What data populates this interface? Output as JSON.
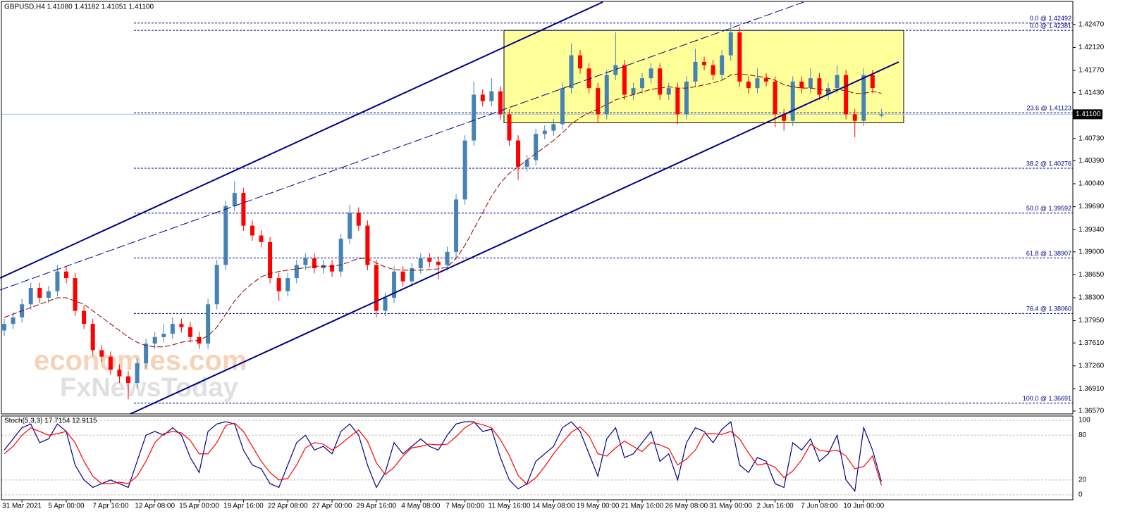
{
  "chart_data": [
    {
      "type": "candlestick",
      "title": "GBPUSD,H4  1.41080 1.41182 1.41051 1.41100",
      "categories": [
        null,
        null,
        "31 Mar 2021",
        null,
        null,
        null,
        null,
        "5 Apr 00:00",
        null,
        null,
        null,
        null,
        "7 Apr 16:00",
        null,
        null,
        null,
        null,
        "12 Apr 08:00",
        null,
        null,
        null,
        null,
        "15 Apr 00:00",
        null,
        null,
        null,
        null,
        "19 Apr 16:00",
        null,
        null,
        null,
        null,
        "22 Apr 08:00",
        null,
        null,
        null,
        null,
        "27 Apr 00:00",
        null,
        null,
        null,
        null,
        "29 Apr 16:00",
        null,
        null,
        null,
        null,
        "4 May 08:00",
        null,
        null,
        null,
        null,
        "7 May 00:00",
        null,
        null,
        null,
        null,
        "11 May 16:00",
        null,
        null,
        null,
        null,
        "14 May 08:00",
        null,
        null,
        null,
        null,
        "19 May 00:00",
        null,
        null,
        null,
        null,
        "21 May 16:00",
        null,
        null,
        null,
        null,
        "26 May 08:00",
        null,
        null,
        null,
        null,
        "31 May 00:00",
        null,
        null,
        null,
        null,
        "2 Jun 16:00",
        null,
        null,
        null,
        null,
        "7 Jun 08:00",
        null,
        null,
        null,
        null,
        "10 Jun 00:00",
        null,
        null
      ],
      "open": [
        1.378,
        1.379,
        1.38,
        1.382,
        1.3845,
        1.383,
        1.384,
        1.387,
        1.386,
        1.381,
        1.379,
        1.375,
        1.374,
        1.372,
        1.371,
        1.37,
        1.373,
        1.376,
        1.377,
        1.3775,
        1.379,
        1.3785,
        1.377,
        1.376,
        1.382,
        1.388,
        1.397,
        1.399,
        1.394,
        1.3925,
        1.3915,
        1.386,
        1.384,
        1.386,
        1.388,
        1.389,
        1.3875,
        1.388,
        1.387,
        1.392,
        1.396,
        1.394,
        1.388,
        1.381,
        1.383,
        1.387,
        1.3855,
        1.3875,
        1.389,
        1.3885,
        1.388,
        1.39,
        1.398,
        1.407,
        1.414,
        1.413,
        1.4145,
        1.411,
        1.407,
        1.403,
        1.404,
        1.408,
        1.4085,
        1.4095,
        1.415,
        1.42,
        1.418,
        1.415,
        1.411,
        1.417,
        1.4185,
        1.414,
        1.415,
        1.4165,
        1.418,
        1.414,
        1.415,
        1.411,
        1.416,
        1.419,
        1.4185,
        1.417,
        1.42,
        1.4235,
        1.416,
        1.415,
        1.4165,
        1.416,
        1.411,
        1.41,
        1.416,
        1.415,
        1.4165,
        1.414,
        1.415,
        1.417,
        1.411,
        1.41,
        1.417,
        1.4108
      ],
      "high": [
        1.3798,
        1.3808,
        1.3828,
        1.3853,
        1.3853,
        1.3848,
        1.388,
        1.3878,
        1.3868,
        1.3818,
        1.3798,
        1.3758,
        1.3748,
        1.3728,
        1.3718,
        1.3738,
        1.3768,
        1.3778,
        1.379,
        1.38,
        1.3798,
        1.3793,
        1.3778,
        1.3828,
        1.3888,
        1.3978,
        1.4008,
        1.3998,
        1.3948,
        1.3933,
        1.3923,
        1.3868,
        1.3868,
        1.3888,
        1.3898,
        1.3898,
        1.3888,
        1.3888,
        1.3928,
        1.3972,
        1.3968,
        1.3948,
        1.3888,
        1.3838,
        1.3878,
        1.3878,
        1.3883,
        1.3898,
        1.3898,
        1.3893,
        1.3908,
        1.3988,
        1.4078,
        1.416,
        1.4148,
        1.4165,
        1.4153,
        1.4118,
        1.4078,
        1.4048,
        1.4088,
        1.4093,
        1.4103,
        1.4158,
        1.4218,
        1.4208,
        1.4188,
        1.4158,
        1.4178,
        1.4235,
        1.4193,
        1.4158,
        1.4173,
        1.4188,
        1.4188,
        1.4158,
        1.4158,
        1.4168,
        1.421,
        1.4198,
        1.4193,
        1.4208,
        1.4249,
        1.4243,
        1.4168,
        1.418,
        1.4173,
        1.4168,
        1.4118,
        1.4168,
        1.4168,
        1.418,
        1.4173,
        1.4158,
        1.4185,
        1.4178,
        1.4118,
        1.418,
        1.4178,
        1.41182
      ],
      "low": [
        1.3772,
        1.3782,
        1.3792,
        1.3812,
        1.3822,
        1.3822,
        1.3832,
        1.3852,
        1.3802,
        1.3782,
        1.3742,
        1.3732,
        1.3712,
        1.37,
        1.3675,
        1.3692,
        1.3722,
        1.3752,
        1.3762,
        1.3767,
        1.3777,
        1.3762,
        1.3752,
        1.3752,
        1.3812,
        1.3872,
        1.3962,
        1.3932,
        1.3917,
        1.3907,
        1.3852,
        1.3825,
        1.3832,
        1.3852,
        1.3872,
        1.3867,
        1.3867,
        1.3862,
        1.3862,
        1.3912,
        1.3932,
        1.3872,
        1.38,
        1.3802,
        1.3822,
        1.3847,
        1.3847,
        1.3867,
        1.3877,
        1.3858,
        1.3872,
        1.3892,
        1.3972,
        1.4062,
        1.4122,
        1.4122,
        1.4102,
        1.4062,
        1.401,
        1.4022,
        1.4032,
        1.4072,
        1.4077,
        1.4087,
        1.4142,
        1.4172,
        1.4142,
        1.4098,
        1.4102,
        1.4162,
        1.4132,
        1.4132,
        1.4142,
        1.4157,
        1.4132,
        1.4132,
        1.4095,
        1.4102,
        1.4152,
        1.4177,
        1.4162,
        1.4162,
        1.4192,
        1.4152,
        1.4142,
        1.4142,
        1.4152,
        1.409,
        1.4085,
        1.4092,
        1.4142,
        1.4142,
        1.4132,
        1.4132,
        1.4142,
        1.4102,
        1.4075,
        1.4092,
        1.4142,
        1.41051
      ],
      "close": [
        1.379,
        1.38,
        1.382,
        1.3845,
        1.383,
        1.384,
        1.387,
        1.386,
        1.381,
        1.379,
        1.375,
        1.374,
        1.372,
        1.371,
        1.37,
        1.373,
        1.376,
        1.377,
        1.3775,
        1.379,
        1.3785,
        1.377,
        1.376,
        1.382,
        1.388,
        1.397,
        1.399,
        1.394,
        1.3925,
        1.3915,
        1.386,
        1.384,
        1.386,
        1.388,
        1.389,
        1.3875,
        1.388,
        1.387,
        1.392,
        1.396,
        1.394,
        1.388,
        1.381,
        1.383,
        1.387,
        1.3855,
        1.3875,
        1.389,
        1.3885,
        1.388,
        1.39,
        1.398,
        1.407,
        1.414,
        1.413,
        1.4145,
        1.411,
        1.407,
        1.403,
        1.404,
        1.408,
        1.4085,
        1.4095,
        1.415,
        1.42,
        1.418,
        1.415,
        1.411,
        1.417,
        1.4185,
        1.414,
        1.415,
        1.4165,
        1.418,
        1.414,
        1.415,
        1.411,
        1.416,
        1.419,
        1.4185,
        1.417,
        1.42,
        1.4235,
        1.416,
        1.415,
        1.4165,
        1.416,
        1.411,
        1.41,
        1.416,
        1.415,
        1.4165,
        1.414,
        1.415,
        1.417,
        1.411,
        1.41,
        1.417,
        1.415,
        1.411
      ],
      "up_color": "#4682b4",
      "down_color": "#ff0000",
      "ma": {
        "color": "#8b0000",
        "values": [
          1.38,
          1.3805,
          1.381,
          1.3815,
          1.382,
          1.3825,
          1.383,
          1.383,
          1.3825,
          1.382,
          1.381,
          1.38,
          1.379,
          1.378,
          1.377,
          1.3762,
          1.3757,
          1.3755,
          1.3755,
          1.3758,
          1.3762,
          1.3764,
          1.3765,
          1.3772,
          1.3785,
          1.3805,
          1.3825,
          1.384,
          1.3852,
          1.3862,
          1.3867,
          1.387,
          1.3872,
          1.3874,
          1.3876,
          1.3878,
          1.3878,
          1.3878,
          1.388,
          1.3885,
          1.389,
          1.389,
          1.3883,
          1.3877,
          1.3873,
          1.3872,
          1.3872,
          1.3872,
          1.3873,
          1.3874,
          1.3877,
          1.389,
          1.391,
          1.3935,
          1.396,
          1.3985,
          1.4005,
          1.402,
          1.403,
          1.404,
          1.405,
          1.406,
          1.407,
          1.4082,
          1.4095,
          1.4105,
          1.4112,
          1.4118,
          1.4125,
          1.4132,
          1.4136,
          1.414,
          1.4144,
          1.4148,
          1.415,
          1.4152,
          1.415,
          1.415,
          1.4152,
          1.4155,
          1.4158,
          1.4162,
          1.417,
          1.4172,
          1.417,
          1.4168,
          1.4166,
          1.4162,
          1.4155,
          1.4152,
          1.415,
          1.415,
          1.4148,
          1.4146,
          1.4148,
          1.4146,
          1.4142,
          1.4142,
          1.4145,
          1.4142
        ]
      },
      "ylim": [
        1.36527,
        1.42823
      ],
      "yticks": [
        {
          "value": 1.4247,
          "label": "1.42470"
        },
        {
          "value": 1.4212,
          "label": "1.42120"
        },
        {
          "value": 1.4177,
          "label": "1.41770"
        },
        {
          "value": 1.4143,
          "label": "1.41430"
        },
        {
          "value": 1.4073,
          "label": "1.40730"
        },
        {
          "value": 1.4039,
          "label": "1.40390"
        },
        {
          "value": 1.4004,
          "label": "1.40040"
        },
        {
          "value": 1.3969,
          "label": "1.39690"
        },
        {
          "value": 1.3934,
          "label": "1.39340"
        },
        {
          "value": 1.39,
          "label": "1.39000"
        },
        {
          "value": 1.3865,
          "label": "1.38650"
        },
        {
          "value": 1.383,
          "label": "1.38300"
        },
        {
          "value": 1.3795,
          "label": "1.37950"
        },
        {
          "value": 1.3761,
          "label": "1.37610"
        },
        {
          "value": 1.3726,
          "label": "1.37260"
        },
        {
          "value": 1.3691,
          "label": "1.36910"
        },
        {
          "value": 1.3657,
          "label": "1.36570"
        }
      ],
      "fib_levels": [
        {
          "value": 1.42492,
          "label": "0.0 @ 1.42492"
        },
        {
          "value": 1.42381,
          "label": "0.0 @ 1.42381"
        },
        {
          "value": 1.41123,
          "label": "23.6 @ 1.41123"
        },
        {
          "value": 1.40276,
          "label": "38.2 @ 1.40276"
        },
        {
          "value": 1.39592,
          "label": "50.0 @ 1.39592"
        },
        {
          "value": 1.38907,
          "label": "61.8 @ 1.38907"
        },
        {
          "value": 1.3806,
          "label": "76.4 @ 1.38060"
        },
        {
          "value": 1.36691,
          "label": "100.0 @ 1.36691"
        }
      ],
      "fib_color": "#00008b",
      "current_price": {
        "value": 1.411,
        "label": "1.41100"
      },
      "rectangle": {
        "ylim": [
          1.4097,
          1.42381
        ],
        "color": "#ffff99"
      },
      "watermark": [
        "economies.com",
        "FxNewsToday"
      ]
    },
    {
      "type": "line",
      "title": "Stoch(5,3,3) 17.7154 12.9115",
      "series": [
        {
          "color": "#00008b",
          "values": [
            60,
            75,
            90,
            95,
            70,
            75,
            95,
            85,
            40,
            20,
            10,
            15,
            20,
            15,
            10,
            45,
            80,
            85,
            80,
            90,
            80,
            50,
            30,
            85,
            95,
            98,
            95,
            60,
            40,
            35,
            15,
            10,
            40,
            70,
            80,
            60,
            65,
            55,
            85,
            95,
            80,
            40,
            10,
            30,
            70,
            55,
            65,
            75,
            65,
            60,
            80,
            95,
            98,
            98,
            85,
            88,
            50,
            20,
            8,
            15,
            45,
            55,
            65,
            90,
            98,
            85,
            55,
            25,
            75,
            90,
            50,
            55,
            70,
            85,
            45,
            55,
            20,
            70,
            90,
            85,
            70,
            88,
            98,
            40,
            30,
            50,
            45,
            15,
            10,
            70,
            60,
            75,
            45,
            55,
            80,
            20,
            5,
            90,
            60,
            17.7154
          ]
        },
        {
          "color": "#ff0000",
          "values": [
            55,
            65,
            80,
            90,
            85,
            80,
            82,
            85,
            70,
            45,
            25,
            15,
            15,
            17,
            15,
            25,
            45,
            70,
            82,
            85,
            83,
            73,
            55,
            55,
            70,
            93,
            96,
            85,
            65,
            45,
            30,
            20,
            22,
            40,
            63,
            70,
            68,
            60,
            68,
            78,
            87,
            72,
            43,
            27,
            37,
            52,
            63,
            65,
            68,
            67,
            68,
            78,
            90,
            97,
            94,
            90,
            74,
            53,
            26,
            14,
            23,
            38,
            55,
            70,
            84,
            91,
            79,
            55,
            52,
            63,
            72,
            65,
            58,
            70,
            67,
            62,
            40,
            48,
            60,
            82,
            82,
            81,
            85,
            75,
            56,
            40,
            42,
            37,
            23,
            32,
            47,
            68,
            60,
            58,
            60,
            52,
            35,
            38,
            52,
            12.9115
          ]
        }
      ],
      "ylim": [
        -6.6,
        105.7
      ],
      "yticks": [
        100,
        80,
        20,
        0
      ]
    }
  ]
}
